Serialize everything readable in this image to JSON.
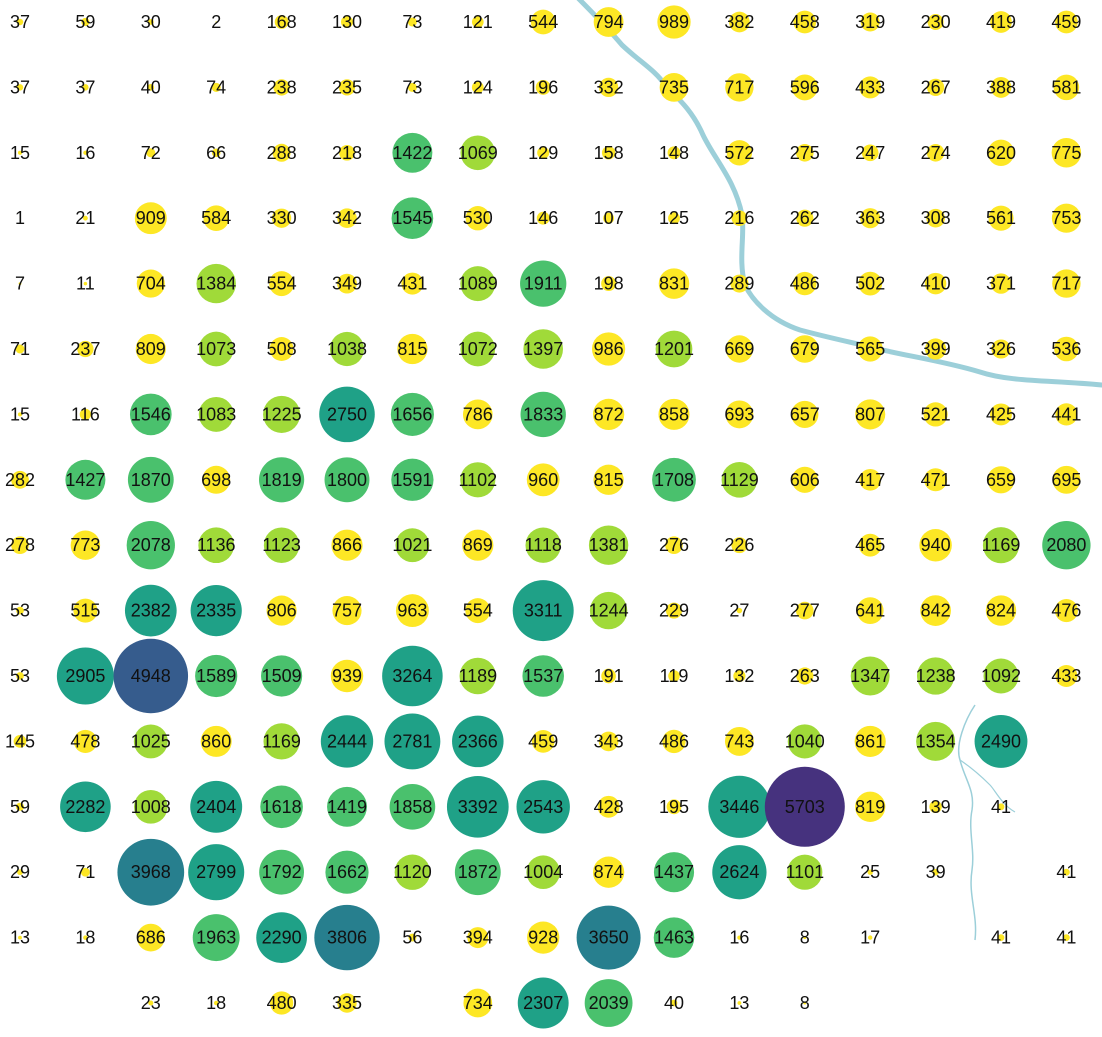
{
  "grid": {
    "rows": [
      [
        37,
        59,
        30,
        2,
        168,
        130,
        73,
        121,
        544,
        794,
        989,
        382,
        458,
        319,
        230,
        419,
        459
      ],
      [
        37,
        37,
        40,
        74,
        238,
        235,
        73,
        124,
        196,
        332,
        735,
        717,
        596,
        433,
        267,
        388,
        581
      ],
      [
        15,
        16,
        72,
        66,
        288,
        218,
        1422,
        1069,
        129,
        158,
        148,
        572,
        275,
        247,
        274,
        620,
        775
      ],
      [
        1,
        21,
        909,
        584,
        330,
        342,
        1545,
        530,
        146,
        107,
        125,
        216,
        262,
        363,
        308,
        561,
        753
      ],
      [
        7,
        11,
        704,
        1384,
        554,
        349,
        431,
        1089,
        1911,
        198,
        831,
        289,
        486,
        502,
        410,
        371,
        717
      ],
      [
        71,
        237,
        809,
        1073,
        508,
        1038,
        815,
        1072,
        1397,
        986,
        1201,
        669,
        679,
        565,
        399,
        326,
        536
      ],
      [
        15,
        116,
        1546,
        1083,
        1225,
        2750,
        1656,
        786,
        1833,
        872,
        858,
        693,
        657,
        807,
        521,
        425,
        441
      ],
      [
        282,
        1427,
        1870,
        698,
        1819,
        1800,
        1591,
        1102,
        960,
        815,
        1708,
        1129,
        606,
        417,
        471,
        659,
        695
      ],
      [
        278,
        773,
        2078,
        1136,
        1123,
        866,
        1021,
        869,
        1118,
        1381,
        276,
        226,
        null,
        465,
        940,
        1169,
        2080
      ],
      [
        53,
        515,
        2382,
        2335,
        806,
        757,
        963,
        554,
        3311,
        1244,
        229,
        27,
        277,
        641,
        842,
        824,
        476
      ],
      [
        53,
        2905,
        4948,
        1589,
        1509,
        939,
        3264,
        1189,
        1537,
        191,
        119,
        132,
        263,
        1347,
        1238,
        1092,
        433
      ],
      [
        145,
        478,
        1025,
        860,
        1169,
        2444,
        2781,
        2366,
        459,
        343,
        486,
        743,
        1040,
        861,
        1354,
        2490,
        null
      ],
      [
        59,
        2282,
        1008,
        2404,
        1618,
        1419,
        1858,
        3392,
        2543,
        428,
        195,
        3446,
        5703,
        819,
        139,
        41,
        null
      ],
      [
        29,
        71,
        3968,
        2799,
        1792,
        1662,
        1120,
        1872,
        1004,
        874,
        1437,
        2624,
        1101,
        25,
        39,
        null,
        41
      ],
      [
        13,
        18,
        686,
        1963,
        2290,
        3806,
        56,
        394,
        928,
        3650,
        1463,
        16,
        8,
        17,
        null,
        41,
        41
      ],
      [
        null,
        null,
        23,
        18,
        480,
        335,
        null,
        734,
        2307,
        2039,
        40,
        13,
        8,
        null,
        null,
        null,
        null
      ]
    ]
  },
  "colors": {
    "river": "#9ccfd9",
    "label": "#111111",
    "scale": [
      "#fde725",
      "#a0da39",
      "#4ac16d",
      "#1fa187",
      "#277f8e",
      "#365c8d",
      "#46327e"
    ]
  }
}
